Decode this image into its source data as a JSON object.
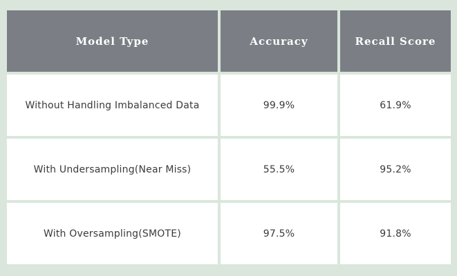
{
  "table": {
    "headers": {
      "model": "Model Type",
      "accuracy": "Accuracy",
      "recall": "Recall Score"
    },
    "rows": [
      {
        "model": "Without Handling Imbalanced Data",
        "accuracy": "99.9%",
        "recall": "61.9%"
      },
      {
        "model": "With Undersampling(Near Miss)",
        "accuracy": "55.5%",
        "recall": "95.2%"
      },
      {
        "model": "With Oversampling(SMOTE)",
        "accuracy": "97.5%",
        "recall": "91.8%"
      }
    ]
  }
}
